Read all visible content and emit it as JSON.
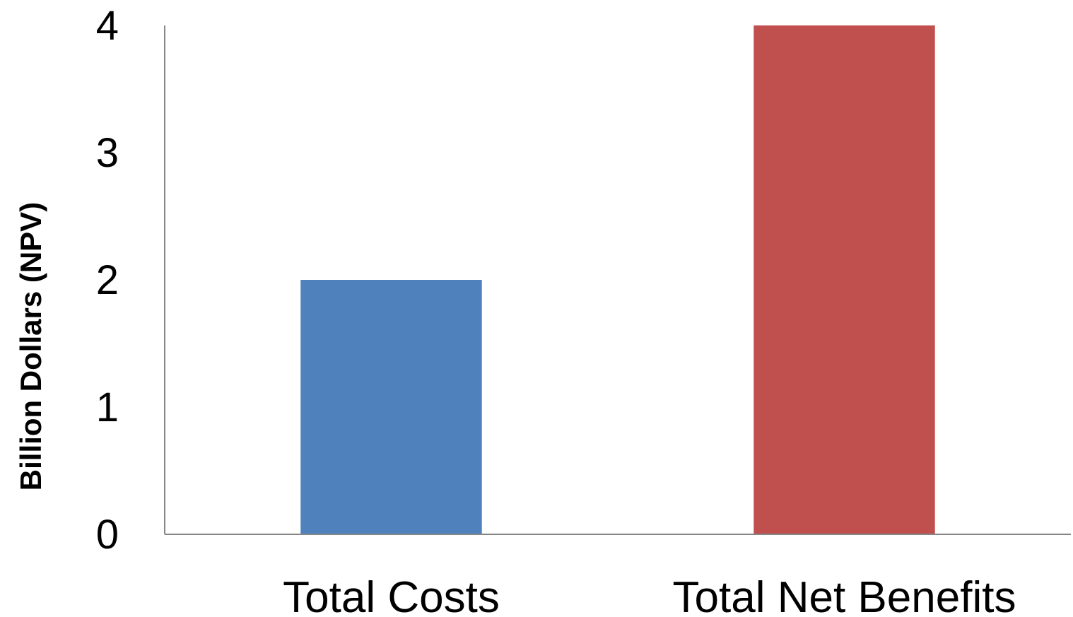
{
  "chart_data": {
    "type": "bar",
    "categories": [
      "Total Costs",
      "Total Net Benefits"
    ],
    "values": [
      2,
      4
    ],
    "colors": [
      "#4f81bd",
      "#c0504d"
    ],
    "title": "",
    "xlabel": "",
    "ylabel": "Billion Dollars (NPV)",
    "ylim": [
      0,
      4
    ],
    "yticks": [
      0,
      1,
      2,
      3,
      4
    ],
    "grid": false,
    "legend": "none",
    "axis_color": "#868686"
  }
}
